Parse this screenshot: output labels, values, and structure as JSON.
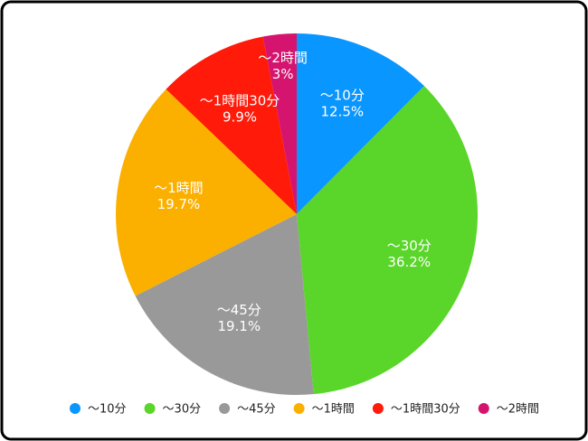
{
  "chart_data": {
    "type": "pie",
    "categories": [
      "～10分",
      "～30分",
      "～45分",
      "～1時間",
      "～1時間30分",
      "～2時間"
    ],
    "values": [
      12.5,
      36.2,
      19.1,
      19.7,
      9.9,
      3
    ],
    "value_labels": [
      "12.5%",
      "36.2%",
      "19.1%",
      "19.7%",
      "9.9%",
      "3%"
    ],
    "colors": [
      "#0a96ff",
      "#5ad52a",
      "#999999",
      "#fbb000",
      "#ff1a0a",
      "#d4146e"
    ],
    "legend": "bottom"
  }
}
